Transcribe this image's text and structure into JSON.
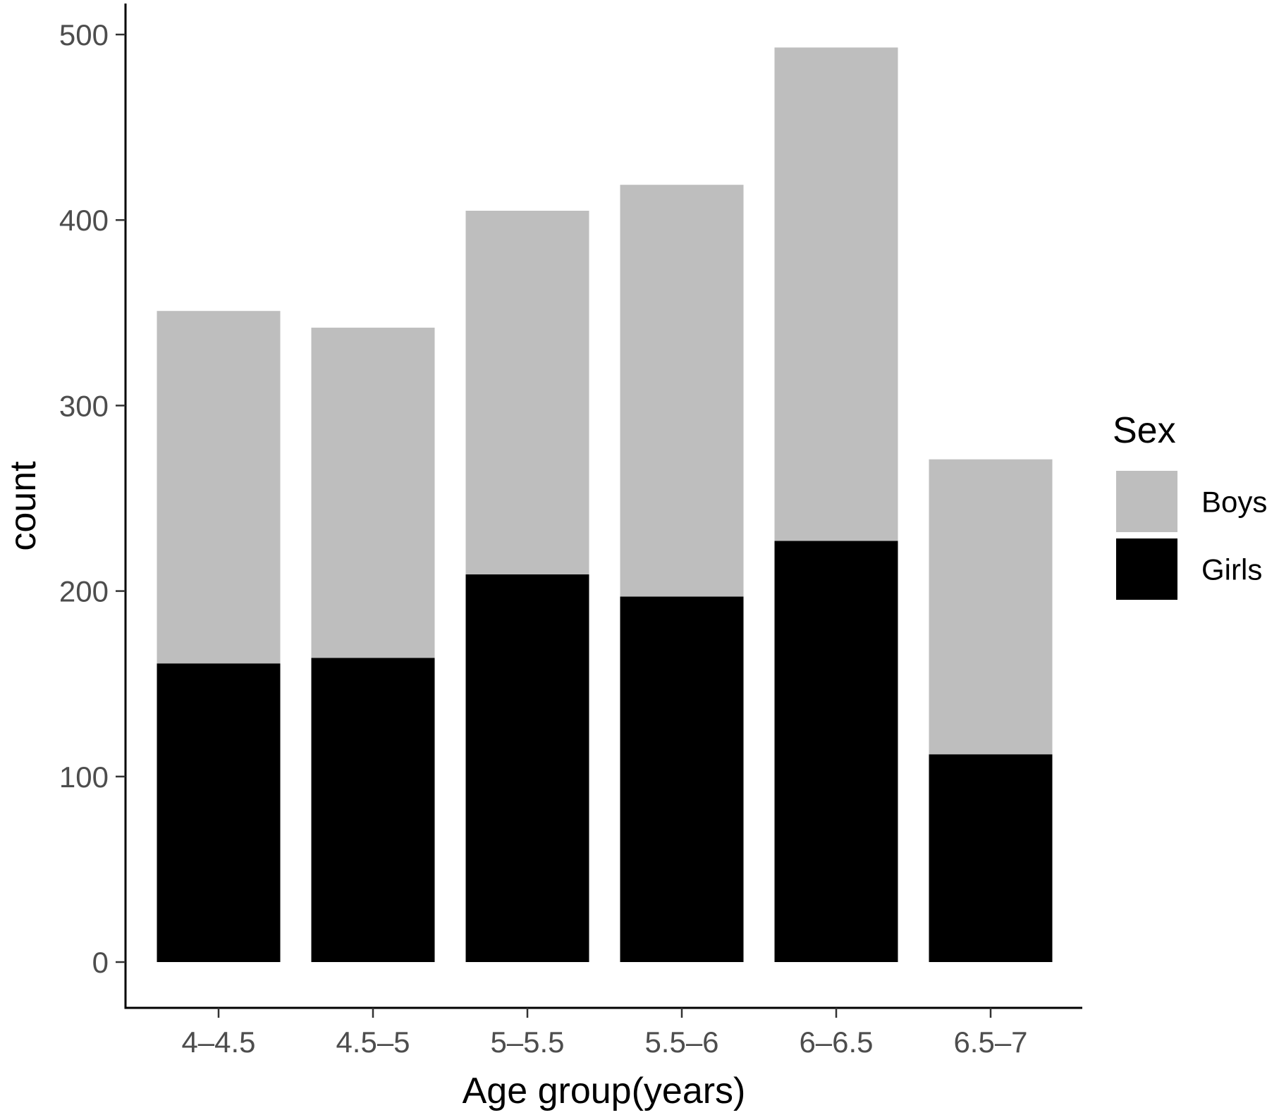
{
  "chart_data": {
    "type": "bar",
    "stacked": true,
    "categories": [
      "4–4.5",
      "4.5–5",
      "5–5.5",
      "5.5–6",
      "6–6.5",
      "6.5–7"
    ],
    "series": [
      {
        "name": "Girls",
        "values": [
          161,
          164,
          209,
          197,
          227,
          112
        ],
        "color": "#000000"
      },
      {
        "name": "Boys",
        "values": [
          190,
          178,
          196,
          222,
          266,
          159
        ],
        "color": "#bebebe"
      }
    ],
    "xlabel": "Age group(years)",
    "ylabel": "count",
    "ylim": [
      0,
      520
    ],
    "yticks": [
      0,
      100,
      200,
      300,
      400,
      500
    ],
    "grid": false,
    "legend": {
      "title": "Sex",
      "position": "right",
      "entries": [
        {
          "label": "Boys",
          "color": "#bebebe"
        },
        {
          "label": "Girls",
          "color": "#000000"
        }
      ]
    }
  }
}
